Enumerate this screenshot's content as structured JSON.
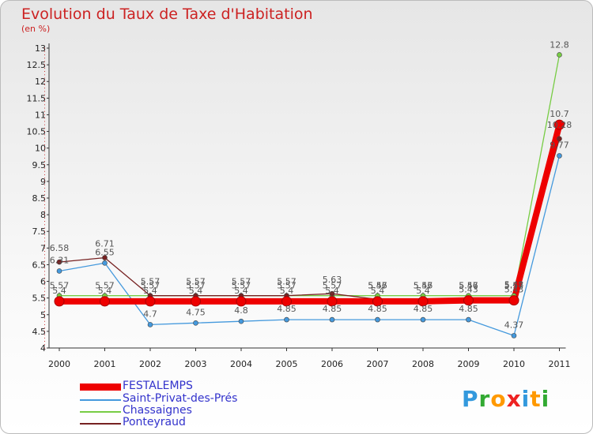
{
  "chart_data": {
    "type": "line",
    "title": "Evolution du Taux de Taxe d'Habitation",
    "subtitle": "(en %)",
    "xlabel": "",
    "ylabel": "",
    "categories": [
      "2000",
      "2001",
      "2002",
      "2003",
      "2004",
      "2005",
      "2006",
      "2007",
      "2008",
      "2009",
      "2010",
      "2011"
    ],
    "ylim": [
      4,
      13
    ],
    "yticks": [
      "4",
      "4.5",
      "5",
      "5.5",
      "6",
      "6.5",
      "7",
      "7.5",
      "8",
      "8.5",
      "9",
      "9.5",
      "10",
      "10.5",
      "11",
      "11.5",
      "12",
      "12.5",
      "13"
    ],
    "grid": false,
    "legend_position": "bottom-left",
    "series": [
      {
        "name": "FESTALEMPS",
        "color": "#ee0000",
        "values": [
          5.4,
          5.4,
          5.4,
          5.4,
          5.4,
          5.4,
          5.4,
          5.4,
          5.4,
          5.43,
          5.43,
          10.7
        ],
        "labels": [
          "5.4",
          "5.4",
          "5.4",
          "5.4",
          "5.4",
          "5.4",
          "5.4",
          "5.4",
          "5.4",
          "5.43",
          "5.43",
          "10.7"
        ]
      },
      {
        "name": "Saint-Privat-des-Prés",
        "color": "#4499dd",
        "values": [
          6.31,
          6.55,
          4.7,
          4.75,
          4.8,
          4.85,
          4.85,
          4.85,
          4.85,
          4.85,
          4.37,
          9.77
        ],
        "labels": [
          "6.31",
          "6.55",
          "4.7",
          "4.75",
          "4.8",
          "4.85",
          "4.85",
          "4.85",
          "4.85",
          "4.85",
          "4.37",
          "9.77"
        ]
      },
      {
        "name": "Chassaignes",
        "color": "#77cc44",
        "values": [
          5.57,
          5.57,
          5.57,
          5.57,
          5.57,
          5.57,
          5.57,
          5.57,
          5.57,
          5.57,
          5.57,
          12.8
        ],
        "labels": [
          "5.57",
          "5.57",
          "5.57",
          "5.57",
          "5.57",
          "5.57",
          "5.57",
          "5.57",
          "5.57",
          "5.57",
          "5.57",
          "12.8"
        ]
      },
      {
        "name": "Ponteyraud",
        "color": "#772222",
        "values": [
          6.58,
          6.71,
          5.57,
          5.57,
          5.57,
          5.57,
          5.63,
          5.46,
          5.46,
          5.46,
          5.48,
          10.28
        ],
        "labels": [
          "6.58",
          "6.71",
          "5.57",
          "5.57",
          "5.57",
          "5.57",
          "5.63",
          "5.46",
          "5.46",
          "5.46",
          "5.48",
          "10.28"
        ]
      }
    ]
  },
  "brand": {
    "letters": [
      "P",
      "r",
      "o",
      "x",
      "i",
      "t",
      "i"
    ],
    "colors": [
      "#3399dd",
      "#33aa33",
      "#ff9900",
      "#ee2222",
      "#3399dd",
      "#ff9900",
      "#33aa33"
    ]
  }
}
